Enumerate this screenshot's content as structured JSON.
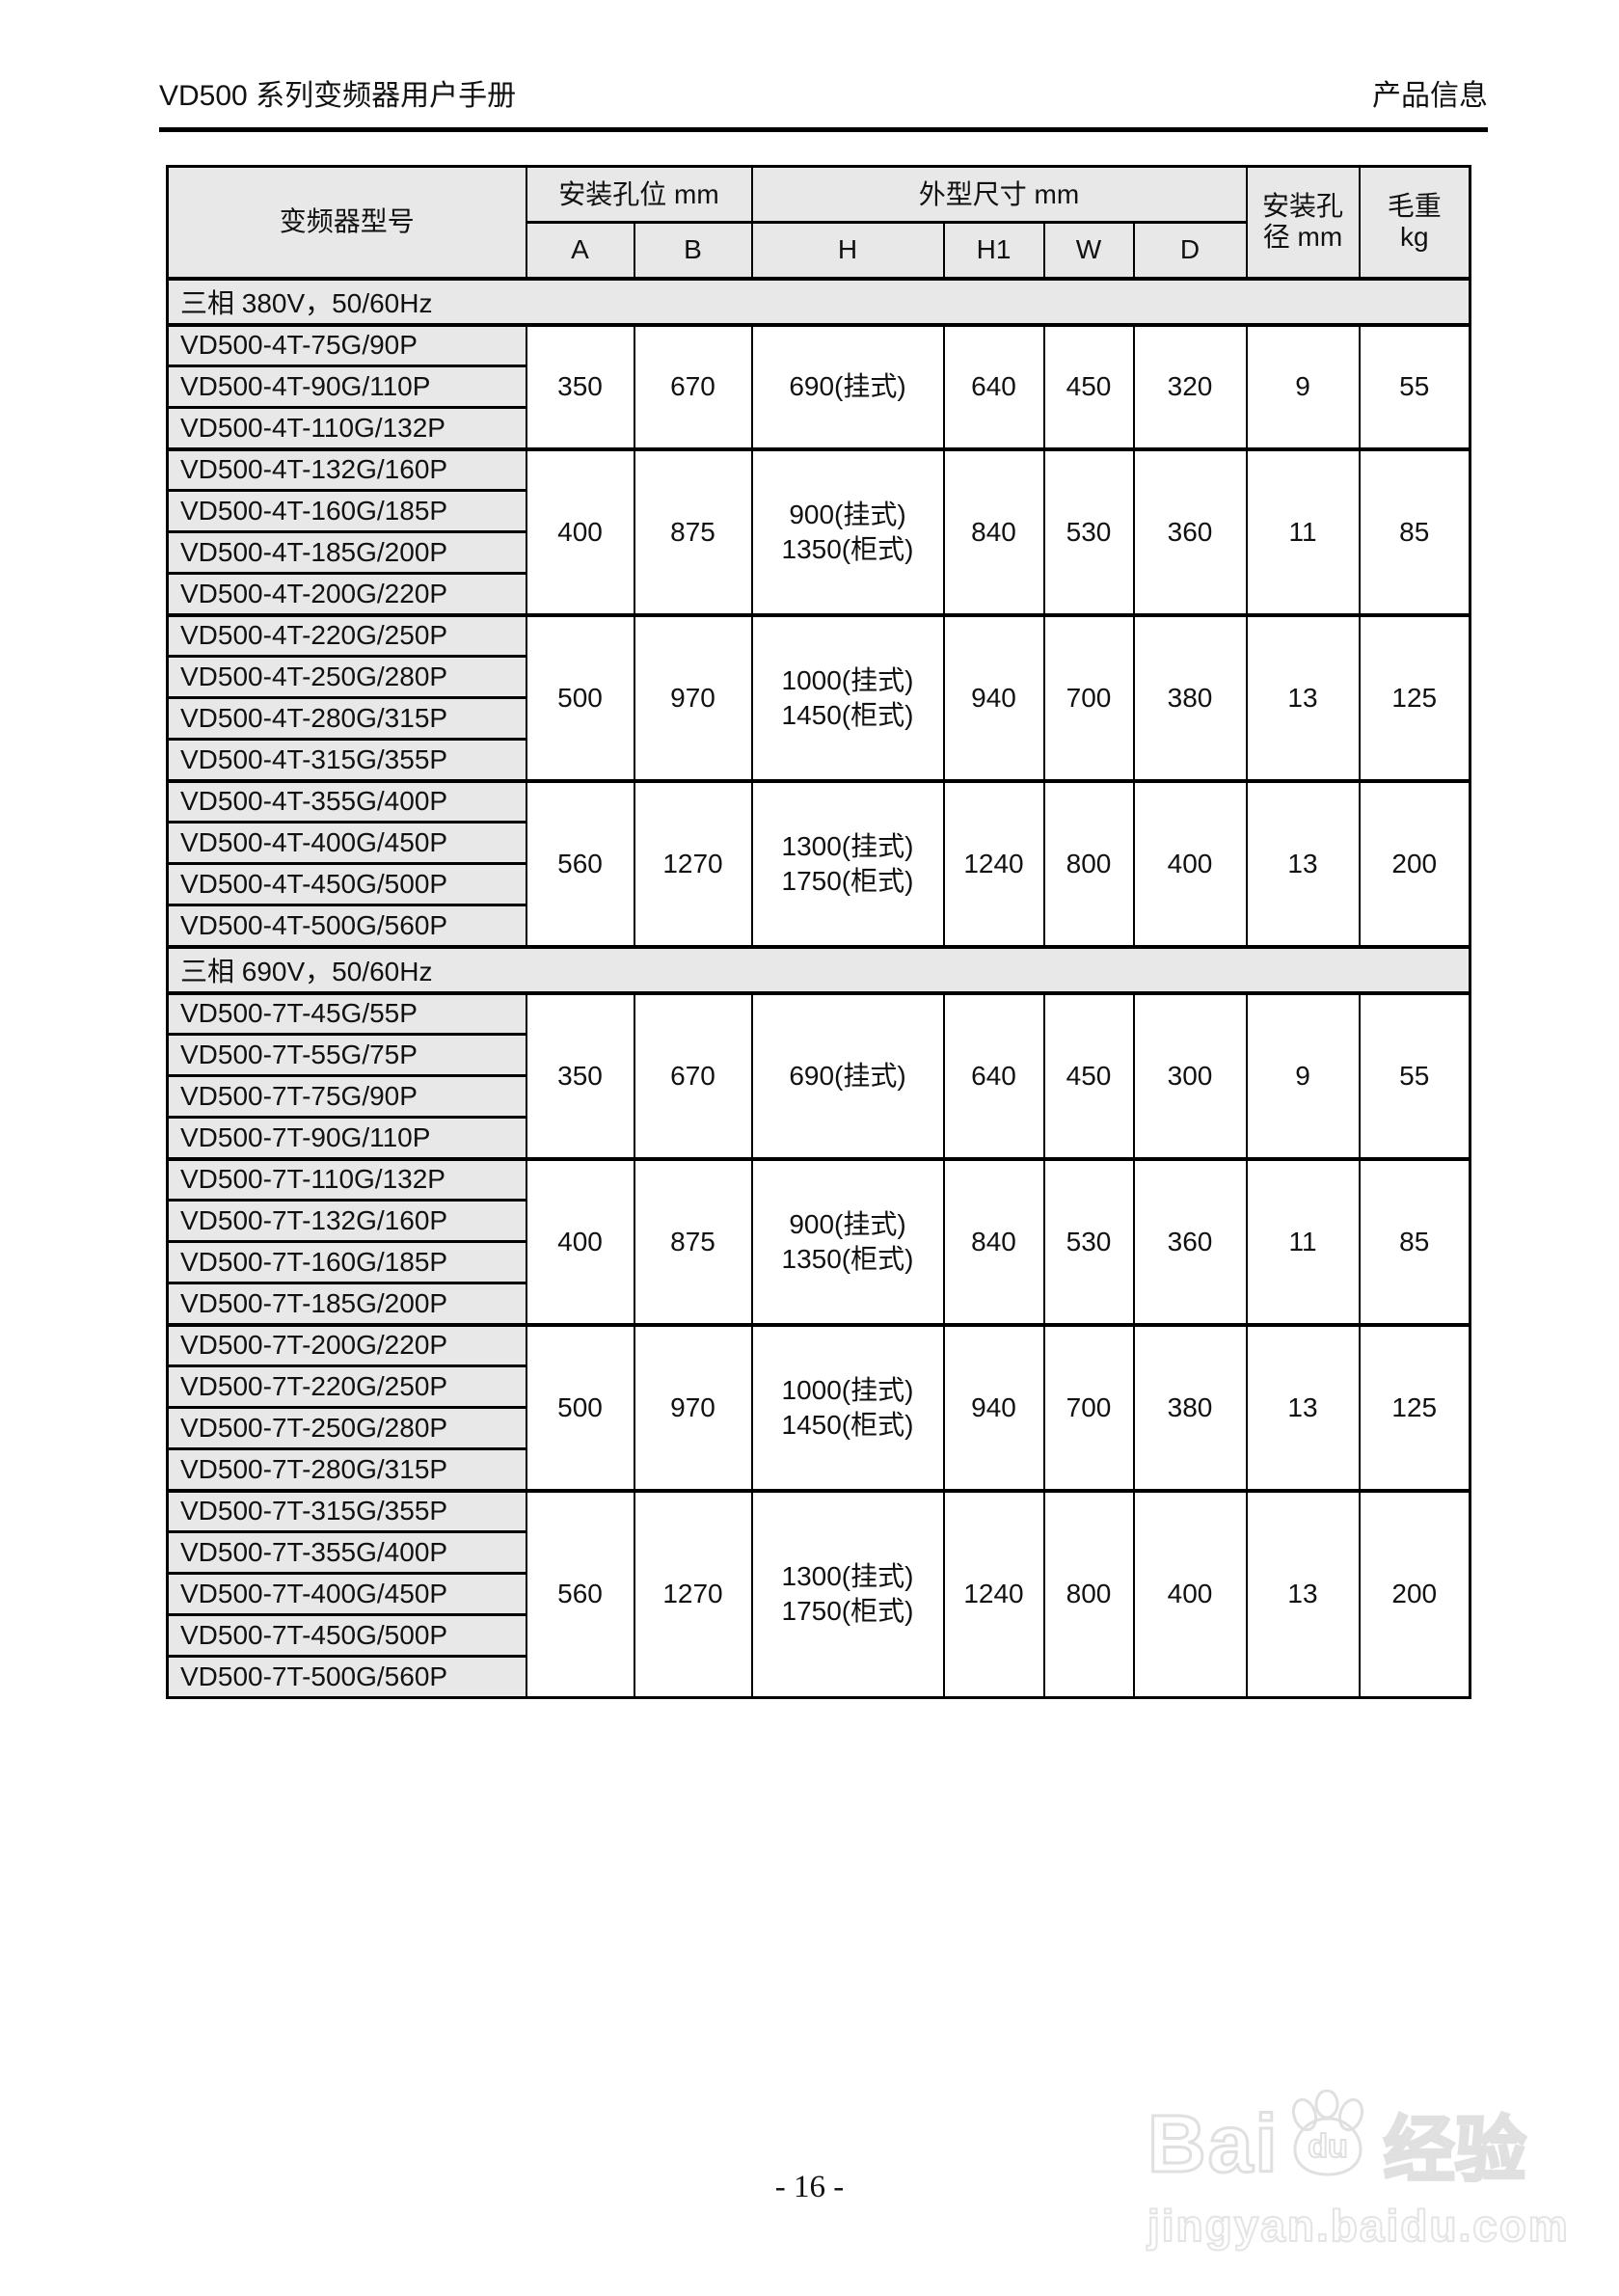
{
  "header": {
    "left_title": "VD500 系列变频器用户手册",
    "right_title": "产品信息"
  },
  "table": {
    "col_headers": {
      "model": "变频器型号",
      "mount_hole": "安装孔位 mm",
      "dims": "外型尺寸 mm",
      "hole_dia_line1": "安装孔",
      "hole_dia_line2": "径 mm",
      "weight_line1": "毛重",
      "weight_line2": "kg"
    },
    "sub_headers": [
      "A",
      "B",
      "H",
      "H1",
      "W",
      "D"
    ],
    "sections": [
      {
        "title": "三相 380V，50/60Hz",
        "groups": [
          {
            "models": [
              "VD500-4T-75G/90P",
              "VD500-4T-90G/110P",
              "VD500-4T-110G/132P"
            ],
            "a": "350",
            "b": "670",
            "h": [
              "690(挂式)"
            ],
            "h1": "640",
            "w": "450",
            "d": "320",
            "dia": "9",
            "kg": "55"
          },
          {
            "models": [
              "VD500-4T-132G/160P",
              "VD500-4T-160G/185P",
              "VD500-4T-185G/200P",
              "VD500-4T-200G/220P"
            ],
            "a": "400",
            "b": "875",
            "h": [
              "900(挂式)",
              "1350(柜式)"
            ],
            "h1": "840",
            "w": "530",
            "d": "360",
            "dia": "11",
            "kg": "85"
          },
          {
            "models": [
              "VD500-4T-220G/250P",
              "VD500-4T-250G/280P",
              "VD500-4T-280G/315P",
              "VD500-4T-315G/355P"
            ],
            "a": "500",
            "b": "970",
            "h": [
              "1000(挂式)",
              "1450(柜式)"
            ],
            "h1": "940",
            "w": "700",
            "d": "380",
            "dia": "13",
            "kg": "125"
          },
          {
            "models": [
              "VD500-4T-355G/400P",
              "VD500-4T-400G/450P",
              "VD500-4T-450G/500P",
              "VD500-4T-500G/560P"
            ],
            "a": "560",
            "b": "1270",
            "h": [
              "1300(挂式)",
              "1750(柜式)"
            ],
            "h1": "1240",
            "w": "800",
            "d": "400",
            "dia": "13",
            "kg": "200"
          }
        ]
      },
      {
        "title": "三相 690V，50/60Hz",
        "groups": [
          {
            "models": [
              "VD500-7T-45G/55P",
              "VD500-7T-55G/75P",
              "VD500-7T-75G/90P",
              "VD500-7T-90G/110P"
            ],
            "a": "350",
            "b": "670",
            "h": [
              "690(挂式)"
            ],
            "h1": "640",
            "w": "450",
            "d": "300",
            "dia": "9",
            "kg": "55"
          },
          {
            "models": [
              "VD500-7T-110G/132P",
              "VD500-7T-132G/160P",
              "VD500-7T-160G/185P",
              "VD500-7T-185G/200P"
            ],
            "a": "400",
            "b": "875",
            "h": [
              "900(挂式)",
              "1350(柜式)"
            ],
            "h1": "840",
            "w": "530",
            "d": "360",
            "dia": "11",
            "kg": "85"
          },
          {
            "models": [
              "VD500-7T-200G/220P",
              "VD500-7T-220G/250P",
              "VD500-7T-250G/280P",
              "VD500-7T-280G/315P"
            ],
            "a": "500",
            "b": "970",
            "h": [
              "1000(挂式)",
              "1450(柜式)"
            ],
            "h1": "940",
            "w": "700",
            "d": "380",
            "dia": "13",
            "kg": "125"
          },
          {
            "models": [
              "VD500-7T-315G/355P",
              "VD500-7T-355G/400P",
              "VD500-7T-400G/450P",
              "VD500-7T-450G/500P",
              "VD500-7T-500G/560P"
            ],
            "a": "560",
            "b": "1270",
            "h": [
              "1300(挂式)",
              "1750(柜式)"
            ],
            "h1": "1240",
            "w": "800",
            "d": "400",
            "dia": "13",
            "kg": "200"
          }
        ]
      }
    ]
  },
  "footer": {
    "page_number": "- 16 -"
  },
  "watermark": {
    "brand_prefix": "Bai",
    "brand_suffix": "du",
    "brand_cn": "经验",
    "url": "jingyan.baidu.com",
    "color": "#e0e0e0"
  }
}
